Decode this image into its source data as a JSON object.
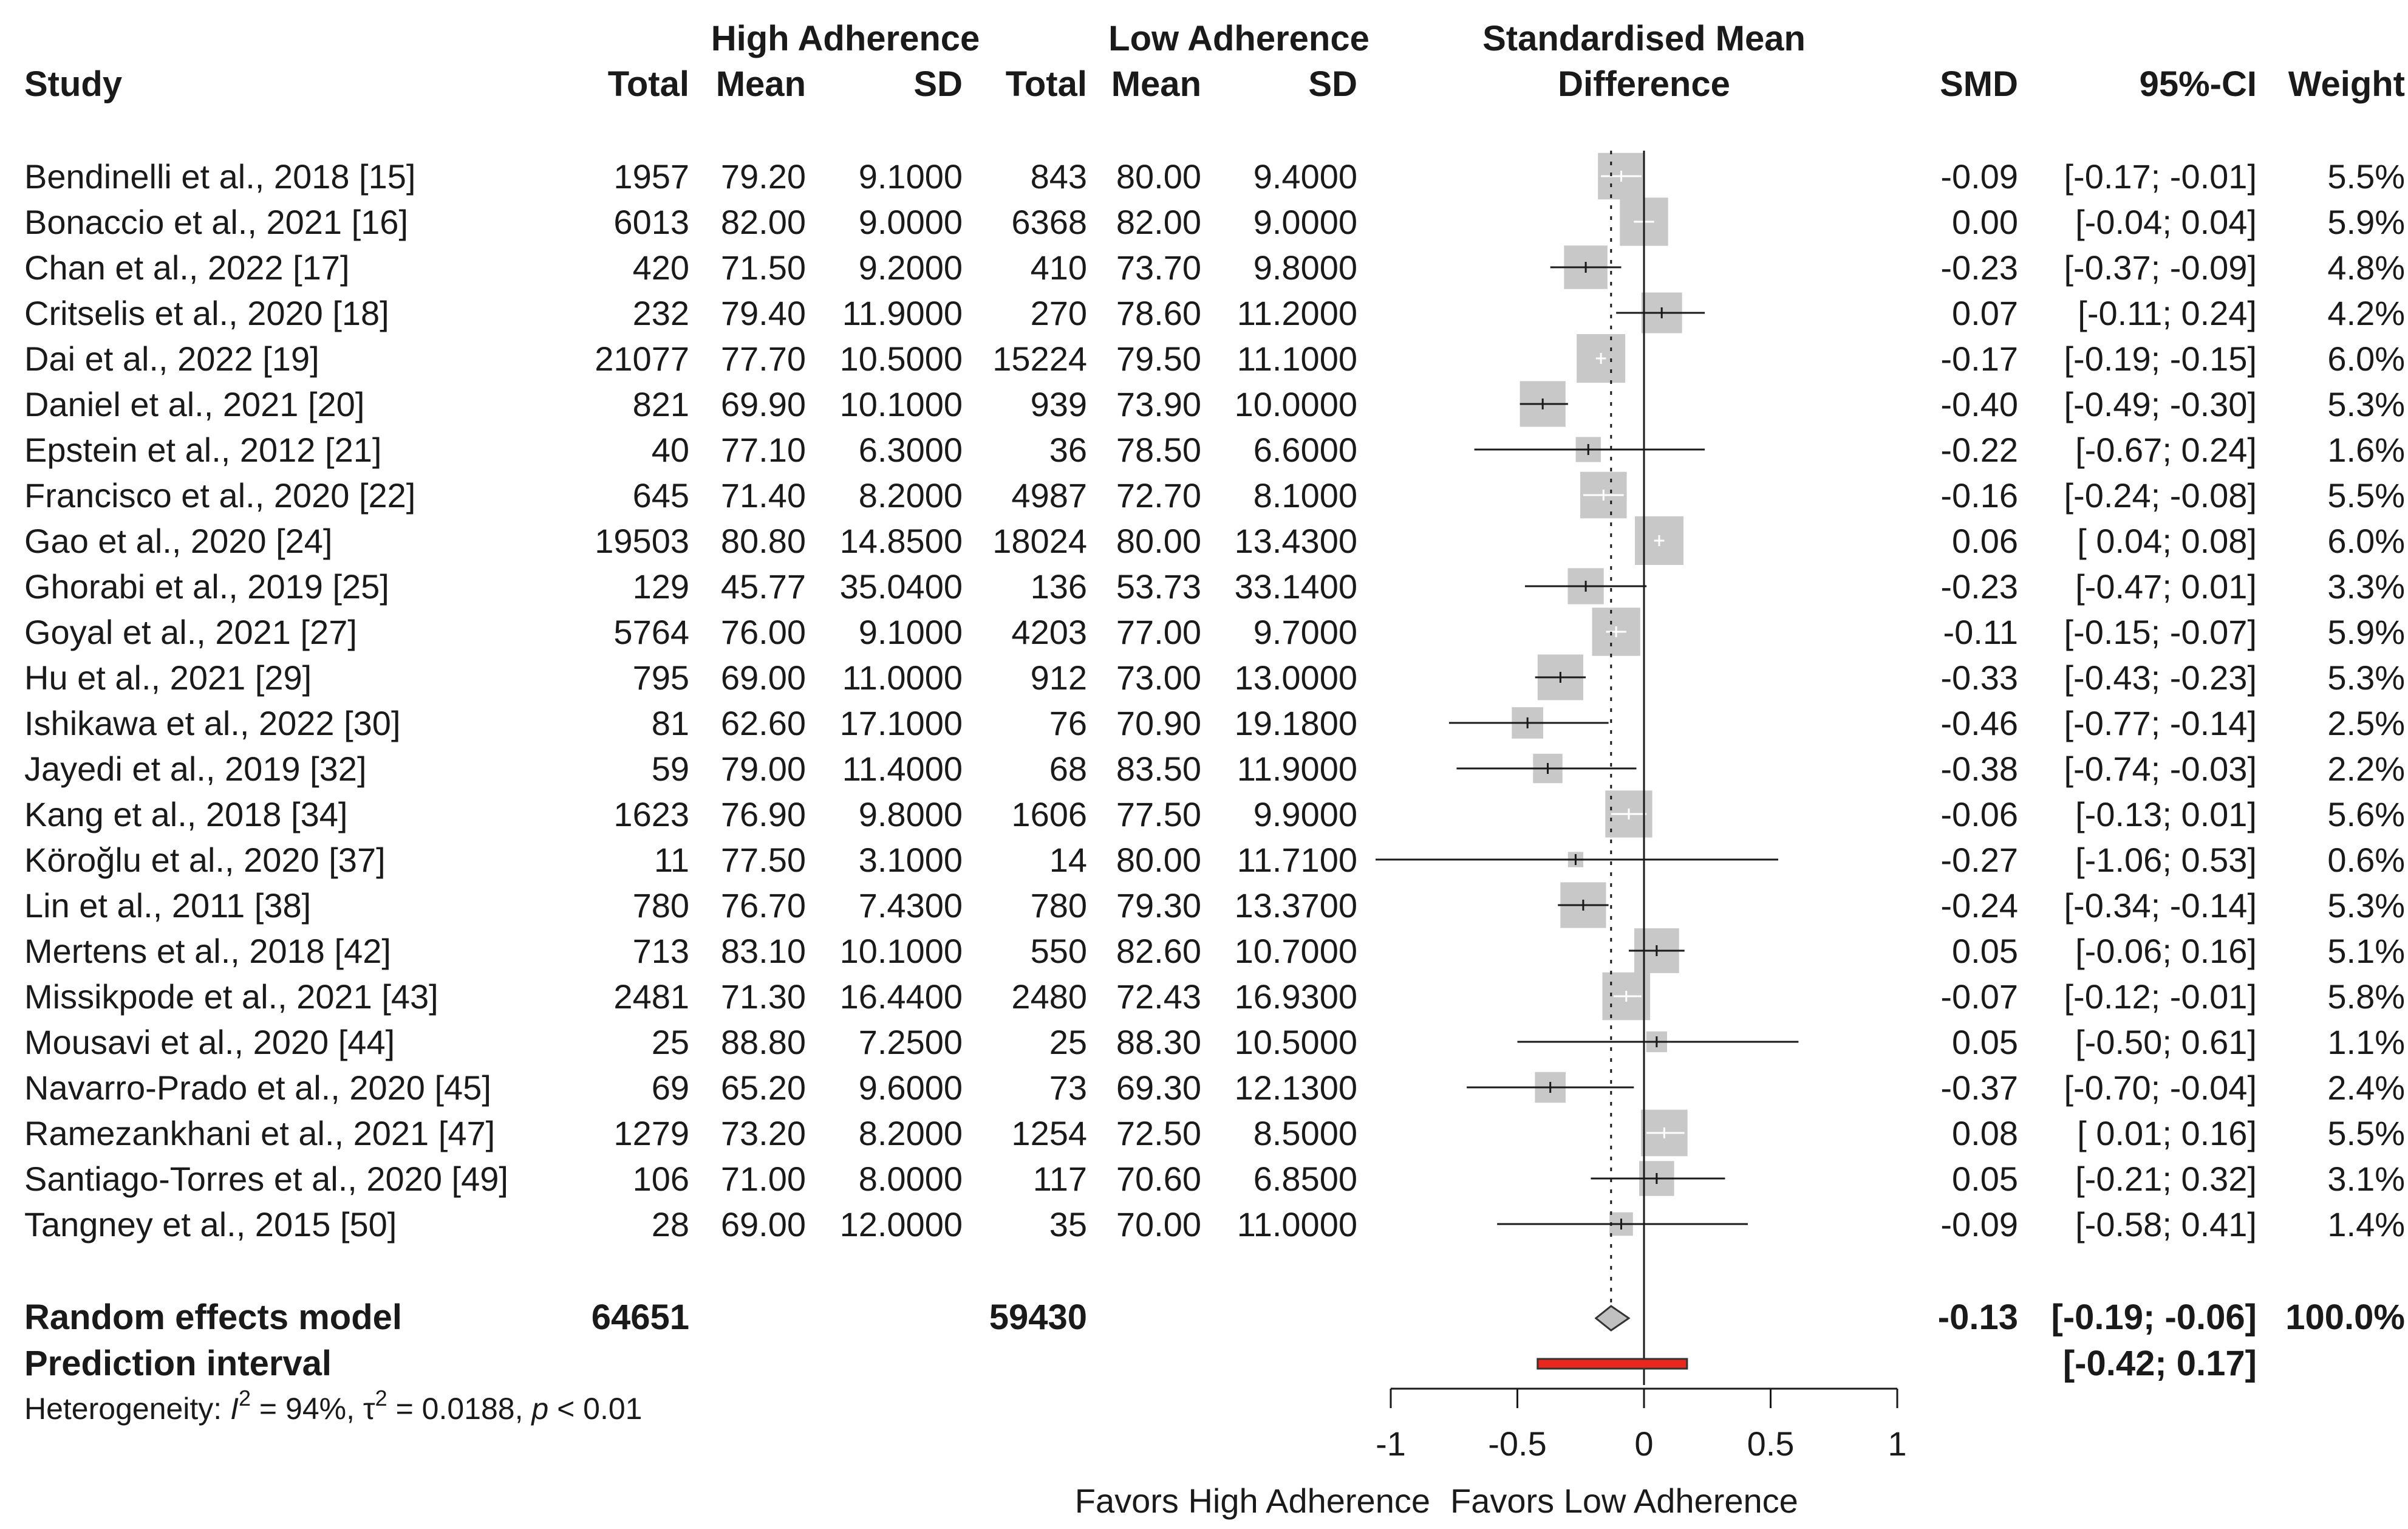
{
  "headers": {
    "study": "Study",
    "group1": "High Adherence",
    "group2": "Low Adherence",
    "total": "Total",
    "mean": "Mean",
    "sd": "SD",
    "plot_title_line1": "Standardised Mean",
    "plot_title_line2": "Difference",
    "smd": "SMD",
    "ci": "95%-CI",
    "weight": "Weight"
  },
  "summary": {
    "label": "Random effects model",
    "n1": "64651",
    "n2": "59430",
    "smd_text": "-0.13",
    "ci_text": "[-0.19; -0.06]",
    "weight_text": "100.0%",
    "smd": -0.13,
    "lo": -0.19,
    "hi": -0.06,
    "prediction_label": "Prediction interval",
    "prediction_ci_text": "[-0.42;  0.17]",
    "pred_lo": -0.42,
    "pred_hi": 0.17
  },
  "heterogeneity": {
    "prefix": "Heterogeneity: ",
    "i2_symbol": "I",
    "i2_value": " = 94%, ",
    "tau_symbol": "τ",
    "tau_value": " = 0.0188, ",
    "p_symbol": "p",
    "p_value": " < 0.01"
  },
  "axis": {
    "ticks": [
      -1,
      -0.5,
      0,
      0.5,
      1
    ],
    "tick_labels": [
      "-1",
      "-0.5",
      "0",
      "0.5",
      "1"
    ],
    "favors_left": "Favors High Adherence",
    "favors_right": "Favors Low Adherence"
  },
  "colors": {
    "square": "#c8c8c8",
    "line": "#1a1a1a",
    "prediction": "#e8281e",
    "diamond": "#c0c0c0"
  },
  "chart_data": {
    "type": "forest",
    "xlim": [
      -1,
      1
    ],
    "xlabel_left": "Favors High Adherence",
    "xlabel_right": "Favors Low Adherence",
    "title": "Standardised Mean Difference",
    "studies": [
      {
        "study": "Bendinelli et al., 2018 [15]",
        "n1": "1957",
        "mean1": "79.20",
        "sd1": "9.1000",
        "n2": "843",
        "mean2": "80.00",
        "sd2": "9.4000",
        "smd_text": "-0.09",
        "ci_text": "[-0.17; -0.01]",
        "weight_text": "5.5%",
        "smd": -0.09,
        "lo": -0.17,
        "hi": -0.01,
        "weight": 5.5
      },
      {
        "study": "Bonaccio et al., 2021 [16]",
        "n1": "6013",
        "mean1": "82.00",
        "sd1": "9.0000",
        "n2": "6368",
        "mean2": "82.00",
        "sd2": "9.0000",
        "smd_text": "0.00",
        "ci_text": "[-0.04;  0.04]",
        "weight_text": "5.9%",
        "smd": 0.0,
        "lo": -0.04,
        "hi": 0.04,
        "weight": 5.9
      },
      {
        "study": "Chan et al., 2022 [17]",
        "n1": "420",
        "mean1": "71.50",
        "sd1": "9.2000",
        "n2": "410",
        "mean2": "73.70",
        "sd2": "9.8000",
        "smd_text": "-0.23",
        "ci_text": "[-0.37; -0.09]",
        "weight_text": "4.8%",
        "smd": -0.23,
        "lo": -0.37,
        "hi": -0.09,
        "weight": 4.8
      },
      {
        "study": "Critselis et al., 2020 [18]",
        "n1": "232",
        "mean1": "79.40",
        "sd1": "11.9000",
        "n2": "270",
        "mean2": "78.60",
        "sd2": "11.2000",
        "smd_text": "0.07",
        "ci_text": "[-0.11;  0.24]",
        "weight_text": "4.2%",
        "smd": 0.07,
        "lo": -0.11,
        "hi": 0.24,
        "weight": 4.2
      },
      {
        "study": "Dai et al., 2022 [19]",
        "n1": "21077",
        "mean1": "77.70",
        "sd1": "10.5000",
        "n2": "15224",
        "mean2": "79.50",
        "sd2": "11.1000",
        "smd_text": "-0.17",
        "ci_text": "[-0.19; -0.15]",
        "weight_text": "6.0%",
        "smd": -0.17,
        "lo": -0.19,
        "hi": -0.15,
        "weight": 6.0
      },
      {
        "study": "Daniel et al., 2021 [20]",
        "n1": "821",
        "mean1": "69.90",
        "sd1": "10.1000",
        "n2": "939",
        "mean2": "73.90",
        "sd2": "10.0000",
        "smd_text": "-0.40",
        "ci_text": "[-0.49; -0.30]",
        "weight_text": "5.3%",
        "smd": -0.4,
        "lo": -0.49,
        "hi": -0.3,
        "weight": 5.3
      },
      {
        "study": "Epstein et al., 2012 [21]",
        "n1": "40",
        "mean1": "77.10",
        "sd1": "6.3000",
        "n2": "36",
        "mean2": "78.50",
        "sd2": "6.6000",
        "smd_text": "-0.22",
        "ci_text": "[-0.67;  0.24]",
        "weight_text": "1.6%",
        "smd": -0.22,
        "lo": -0.67,
        "hi": 0.24,
        "weight": 1.6
      },
      {
        "study": "Francisco et al., 2020 [22]",
        "n1": "645",
        "mean1": "71.40",
        "sd1": "8.2000",
        "n2": "4987",
        "mean2": "72.70",
        "sd2": "8.1000",
        "smd_text": "-0.16",
        "ci_text": "[-0.24; -0.08]",
        "weight_text": "5.5%",
        "smd": -0.16,
        "lo": -0.24,
        "hi": -0.08,
        "weight": 5.5
      },
      {
        "study": "Gao et al., 2020 [24]",
        "n1": "19503",
        "mean1": "80.80",
        "sd1": "14.8500",
        "n2": "18024",
        "mean2": "80.00",
        "sd2": "13.4300",
        "smd_text": "0.06",
        "ci_text": "[ 0.04;  0.08]",
        "weight_text": "6.0%",
        "smd": 0.06,
        "lo": 0.04,
        "hi": 0.08,
        "weight": 6.0
      },
      {
        "study": "Ghorabi et al., 2019 [25]",
        "n1": "129",
        "mean1": "45.77",
        "sd1": "35.0400",
        "n2": "136",
        "mean2": "53.73",
        "sd2": "33.1400",
        "smd_text": "-0.23",
        "ci_text": "[-0.47;  0.01]",
        "weight_text": "3.3%",
        "smd": -0.23,
        "lo": -0.47,
        "hi": 0.01,
        "weight": 3.3
      },
      {
        "study": "Goyal et al., 2021 [27]",
        "n1": "5764",
        "mean1": "76.00",
        "sd1": "9.1000",
        "n2": "4203",
        "mean2": "77.00",
        "sd2": "9.7000",
        "smd_text": "-0.11",
        "ci_text": "[-0.15; -0.07]",
        "weight_text": "5.9%",
        "smd": -0.11,
        "lo": -0.15,
        "hi": -0.07,
        "weight": 5.9
      },
      {
        "study": "Hu et al., 2021 [29]",
        "n1": "795",
        "mean1": "69.00",
        "sd1": "11.0000",
        "n2": "912",
        "mean2": "73.00",
        "sd2": "13.0000",
        "smd_text": "-0.33",
        "ci_text": "[-0.43; -0.23]",
        "weight_text": "5.3%",
        "smd": -0.33,
        "lo": -0.43,
        "hi": -0.23,
        "weight": 5.3
      },
      {
        "study": "Ishikawa et al., 2022 [30]",
        "n1": "81",
        "mean1": "62.60",
        "sd1": "17.1000",
        "n2": "76",
        "mean2": "70.90",
        "sd2": "19.1800",
        "smd_text": "-0.46",
        "ci_text": "[-0.77; -0.14]",
        "weight_text": "2.5%",
        "smd": -0.46,
        "lo": -0.77,
        "hi": -0.14,
        "weight": 2.5
      },
      {
        "study": "Jayedi et al., 2019 [32]",
        "n1": "59",
        "mean1": "79.00",
        "sd1": "11.4000",
        "n2": "68",
        "mean2": "83.50",
        "sd2": "11.9000",
        "smd_text": "-0.38",
        "ci_text": "[-0.74; -0.03]",
        "weight_text": "2.2%",
        "smd": -0.38,
        "lo": -0.74,
        "hi": -0.03,
        "weight": 2.2
      },
      {
        "study": "Kang et al., 2018 [34]",
        "n1": "1623",
        "mean1": "76.90",
        "sd1": "9.8000",
        "n2": "1606",
        "mean2": "77.50",
        "sd2": "9.9000",
        "smd_text": "-0.06",
        "ci_text": "[-0.13;  0.01]",
        "weight_text": "5.6%",
        "smd": -0.06,
        "lo": -0.13,
        "hi": 0.01,
        "weight": 5.6
      },
      {
        "study": "Köroğlu et al., 2020 [37]",
        "n1": "11",
        "mean1": "77.50",
        "sd1": "3.1000",
        "n2": "14",
        "mean2": "80.00",
        "sd2": "11.7100",
        "smd_text": "-0.27",
        "ci_text": "[-1.06;  0.53]",
        "weight_text": "0.6%",
        "smd": -0.27,
        "lo": -1.06,
        "hi": 0.53,
        "weight": 0.6
      },
      {
        "study": "Lin et al., 2011 [38]",
        "n1": "780",
        "mean1": "76.70",
        "sd1": "7.4300",
        "n2": "780",
        "mean2": "79.30",
        "sd2": "13.3700",
        "smd_text": "-0.24",
        "ci_text": "[-0.34; -0.14]",
        "weight_text": "5.3%",
        "smd": -0.24,
        "lo": -0.34,
        "hi": -0.14,
        "weight": 5.3
      },
      {
        "study": "Mertens et al., 2018 [42]",
        "n1": "713",
        "mean1": "83.10",
        "sd1": "10.1000",
        "n2": "550",
        "mean2": "82.60",
        "sd2": "10.7000",
        "smd_text": "0.05",
        "ci_text": "[-0.06;  0.16]",
        "weight_text": "5.1%",
        "smd": 0.05,
        "lo": -0.06,
        "hi": 0.16,
        "weight": 5.1
      },
      {
        "study": "Missikpode et al., 2021 [43]",
        "n1": "2481",
        "mean1": "71.30",
        "sd1": "16.4400",
        "n2": "2480",
        "mean2": "72.43",
        "sd2": "16.9300",
        "smd_text": "-0.07",
        "ci_text": "[-0.12; -0.01]",
        "weight_text": "5.8%",
        "smd": -0.07,
        "lo": -0.12,
        "hi": -0.01,
        "weight": 5.8
      },
      {
        "study": "Mousavi et al., 2020 [44]",
        "n1": "25",
        "mean1": "88.80",
        "sd1": "7.2500",
        "n2": "25",
        "mean2": "88.30",
        "sd2": "10.5000",
        "smd_text": "0.05",
        "ci_text": "[-0.50;  0.61]",
        "weight_text": "1.1%",
        "smd": 0.05,
        "lo": -0.5,
        "hi": 0.61,
        "weight": 1.1
      },
      {
        "study": "Navarro-Prado et al., 2020 [45]",
        "n1": "69",
        "mean1": "65.20",
        "sd1": "9.6000",
        "n2": "73",
        "mean2": "69.30",
        "sd2": "12.1300",
        "smd_text": "-0.37",
        "ci_text": "[-0.70; -0.04]",
        "weight_text": "2.4%",
        "smd": -0.37,
        "lo": -0.7,
        "hi": -0.04,
        "weight": 2.4
      },
      {
        "study": "Ramezankhani et al., 2021 [47]",
        "n1": "1279",
        "mean1": "73.20",
        "sd1": "8.2000",
        "n2": "1254",
        "mean2": "72.50",
        "sd2": "8.5000",
        "smd_text": "0.08",
        "ci_text": "[ 0.01;  0.16]",
        "weight_text": "5.5%",
        "smd": 0.08,
        "lo": 0.01,
        "hi": 0.16,
        "weight": 5.5
      },
      {
        "study": "Santiago-Torres et al., 2020 [49]",
        "n1": "106",
        "mean1": "71.00",
        "sd1": "8.0000",
        "n2": "117",
        "mean2": "70.60",
        "sd2": "6.8500",
        "smd_text": "0.05",
        "ci_text": "[-0.21;  0.32]",
        "weight_text": "3.1%",
        "smd": 0.05,
        "lo": -0.21,
        "hi": 0.32,
        "weight": 3.1
      },
      {
        "study": "Tangney et al., 2015 [50]",
        "n1": "28",
        "mean1": "69.00",
        "sd1": "12.0000",
        "n2": "35",
        "mean2": "70.00",
        "sd2": "11.0000",
        "smd_text": "-0.09",
        "ci_text": "[-0.58;  0.41]",
        "weight_text": "1.4%",
        "smd": -0.09,
        "lo": -0.58,
        "hi": 0.41,
        "weight": 1.4
      }
    ]
  }
}
